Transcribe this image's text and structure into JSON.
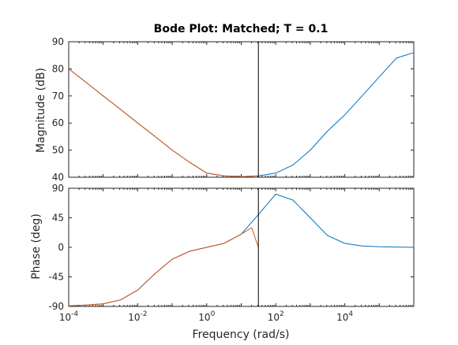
{
  "chart_data": [
    {
      "type": "line",
      "title": "Bode Plot: Matched; T = 0.1",
      "xlabel": "",
      "ylabel": "Magnitude (dB)",
      "xscale": "log",
      "xlim": [
        0.0001,
        1000000
      ],
      "ylim": [
        40,
        90
      ],
      "yticks": [
        40,
        50,
        60,
        70,
        80,
        90
      ],
      "grid": false,
      "vertical_line_x": 31.4,
      "series": [
        {
          "color": "#0072BD",
          "x": [
            0.0001,
            0.00032,
            0.001,
            0.0032,
            0.01,
            0.032,
            0.1,
            0.32,
            1,
            3.16,
            10,
            31.6,
            100,
            316,
            1000,
            3162,
            10000,
            31623,
            100000,
            316228,
            1000000
          ],
          "values": [
            80,
            75,
            70,
            65,
            60,
            55,
            50,
            45.5,
            41.5,
            40.5,
            40.2,
            40.5,
            41.5,
            44.5,
            50,
            57,
            63,
            70,
            77,
            84,
            86
          ]
        },
        {
          "color": "#D95319",
          "x": [
            0.0001,
            0.00032,
            0.001,
            0.0032,
            0.01,
            0.032,
            0.1,
            0.32,
            1,
            3.16,
            10,
            31.4
          ],
          "values": [
            80,
            75,
            70,
            65,
            60,
            55,
            50,
            45.5,
            41.5,
            40.5,
            40.2,
            40.5
          ]
        }
      ]
    },
    {
      "type": "line",
      "xlabel": "Frequency  (rad/s)",
      "ylabel": "Phase (deg)",
      "xscale": "log",
      "xlim": [
        0.0001,
        1000000
      ],
      "ylim": [
        -90,
        90
      ],
      "yticks": [
        -90,
        -45,
        0,
        45,
        90
      ],
      "xtick_labels": [
        "10^-4",
        "10^-2",
        "10^0",
        "10^2",
        "10^4"
      ],
      "grid": false,
      "vertical_line_x": 31.4,
      "series": [
        {
          "color": "#0072BD",
          "x": [
            0.0001,
            0.00032,
            0.001,
            0.0032,
            0.01,
            0.032,
            0.1,
            0.32,
            1,
            3.16,
            10,
            31.6,
            100,
            316,
            1000,
            3162,
            10000,
            31623,
            100000,
            316228,
            1000000
          ],
          "values": [
            -89,
            -88,
            -86,
            -80,
            -65,
            -40,
            -18,
            -6,
            0,
            6,
            20,
            50,
            81,
            72,
            45,
            18,
            6,
            2,
            1,
            0.5,
            0
          ]
        },
        {
          "color": "#D95319",
          "x": [
            0.0001,
            0.00032,
            0.001,
            0.0032,
            0.01,
            0.032,
            0.1,
            0.32,
            1,
            3.16,
            10,
            20,
            31.4
          ],
          "values": [
            -89,
            -88,
            -86,
            -80,
            -65,
            -40,
            -18,
            -6,
            0,
            6,
            20,
            30,
            0
          ]
        }
      ]
    }
  ]
}
